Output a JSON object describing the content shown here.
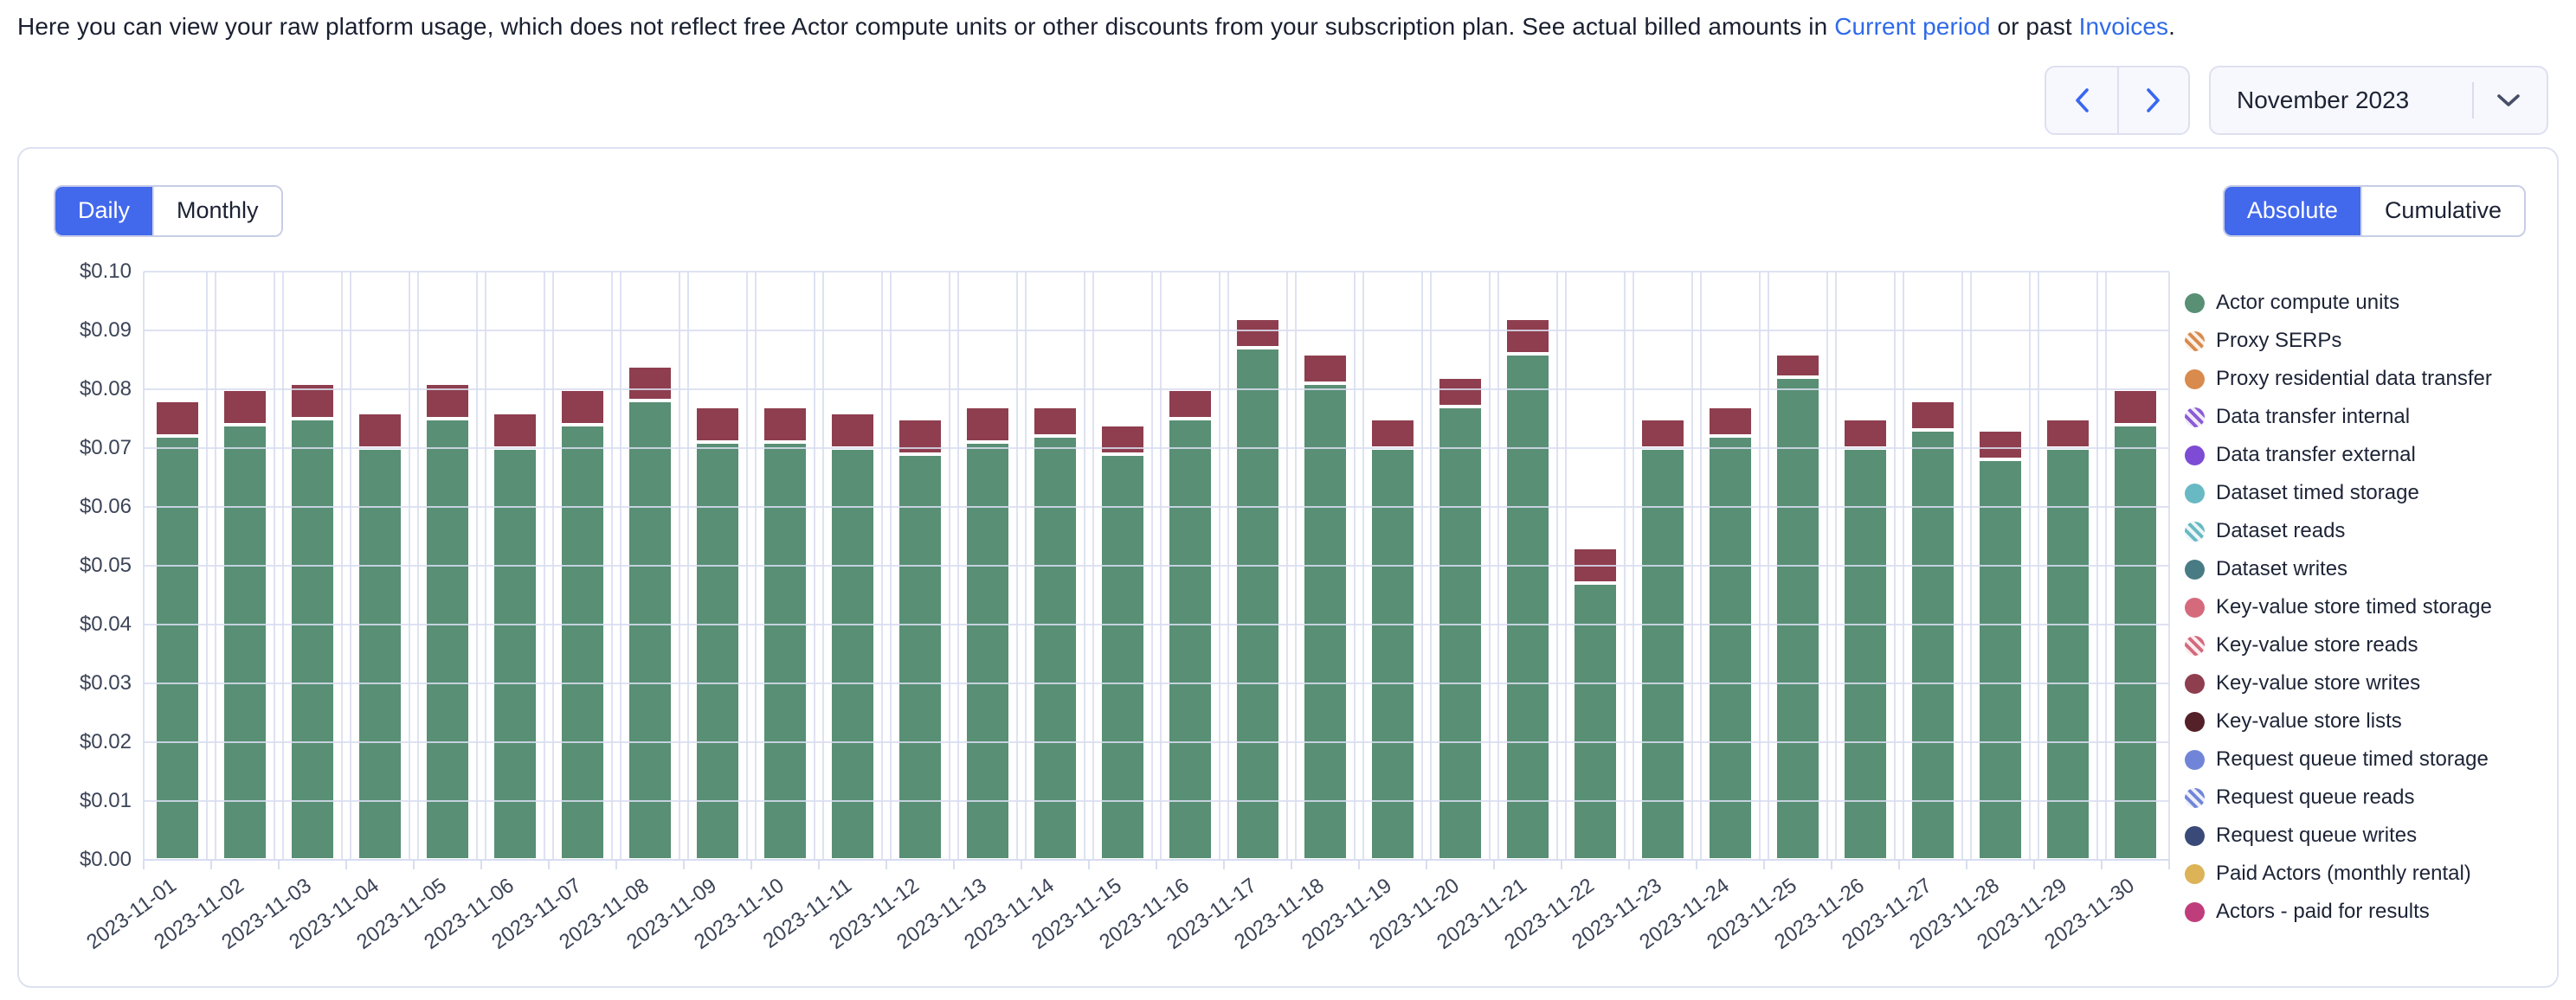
{
  "intro": {
    "text_1": "Here you can view your raw platform usage, which does not reflect free Actor compute units or other discounts from your subscription plan. See actual billed amounts in ",
    "link_current_period": "Current period",
    "text_2": " or past ",
    "link_invoices": "Invoices",
    "text_3": "."
  },
  "controls": {
    "prev_icon": "chevron-left",
    "next_icon": "chevron-right",
    "month_selector": {
      "value": "November 2023",
      "icon": "chevron-down"
    }
  },
  "toggles": {
    "granularity": {
      "options": [
        "Daily",
        "Monthly"
      ],
      "selected": "Daily"
    },
    "mode": {
      "options": [
        "Absolute",
        "Cumulative"
      ],
      "selected": "Absolute"
    }
  },
  "colors": {
    "accent_blue": "#4268ec",
    "link_blue": "#2f6ae8",
    "grid": "#d8ddf0",
    "bar_green": "#588f75",
    "bar_red": "#8e3e4e"
  },
  "chart_data": {
    "type": "bar",
    "stacked": true,
    "grid": true,
    "legend_position": "right",
    "ylim": [
      0,
      0.1
    ],
    "y_ticks": [
      "$0.00",
      "$0.01",
      "$0.02",
      "$0.03",
      "$0.04",
      "$0.05",
      "$0.06",
      "$0.07",
      "$0.08",
      "$0.09",
      "$0.10"
    ],
    "x": [
      "2023-11-01",
      "2023-11-02",
      "2023-11-03",
      "2023-11-04",
      "2023-11-05",
      "2023-11-06",
      "2023-11-07",
      "2023-11-08",
      "2023-11-09",
      "2023-11-10",
      "2023-11-11",
      "2023-11-12",
      "2023-11-13",
      "2023-11-14",
      "2023-11-15",
      "2023-11-16",
      "2023-11-17",
      "2023-11-18",
      "2023-11-19",
      "2023-11-20",
      "2023-11-21",
      "2023-11-22",
      "2023-11-23",
      "2023-11-24",
      "2023-11-25",
      "2023-11-26",
      "2023-11-27",
      "2023-11-28",
      "2023-11-29",
      "2023-11-30"
    ],
    "series": [
      {
        "name": "Actor compute units",
        "color": "#588f75",
        "values": [
          0.072,
          0.074,
          0.075,
          0.07,
          0.075,
          0.07,
          0.074,
          0.078,
          0.071,
          0.071,
          0.07,
          0.069,
          0.071,
          0.072,
          0.069,
          0.075,
          0.087,
          0.081,
          0.07,
          0.077,
          0.086,
          0.047,
          0.07,
          0.072,
          0.082,
          0.07,
          0.073,
          0.068,
          0.07,
          0.074
        ]
      },
      {
        "name": "Key-value store writes",
        "color": "#8e3e4e",
        "values": [
          0.006,
          0.006,
          0.006,
          0.006,
          0.006,
          0.006,
          0.006,
          0.006,
          0.006,
          0.006,
          0.006,
          0.006,
          0.006,
          0.005,
          0.005,
          0.005,
          0.005,
          0.005,
          0.005,
          0.005,
          0.006,
          0.006,
          0.005,
          0.005,
          0.004,
          0.005,
          0.005,
          0.005,
          0.005,
          0.006
        ]
      }
    ],
    "legend": [
      {
        "label": "Actor compute units",
        "color": "#588f75",
        "striped": false
      },
      {
        "label": "Proxy SERPs",
        "color": "#d98a4d",
        "striped": true
      },
      {
        "label": "Proxy residential data transfer",
        "color": "#d98a4d",
        "striped": false
      },
      {
        "label": "Data transfer internal",
        "color": "#8b5cd6",
        "striped": true
      },
      {
        "label": "Data transfer external",
        "color": "#7d4bd4",
        "striped": false
      },
      {
        "label": "Dataset timed storage",
        "color": "#68b9c4",
        "striped": false
      },
      {
        "label": "Dataset reads",
        "color": "#68b9c4",
        "striped": true
      },
      {
        "label": "Dataset writes",
        "color": "#497b84",
        "striped": false
      },
      {
        "label": "Key-value store timed storage",
        "color": "#d56a7d",
        "striped": false
      },
      {
        "label": "Key-value store reads",
        "color": "#d56a7d",
        "striped": true
      },
      {
        "label": "Key-value store writes",
        "color": "#8e3e4e",
        "striped": false
      },
      {
        "label": "Key-value store lists",
        "color": "#542129",
        "striped": false
      },
      {
        "label": "Request queue timed storage",
        "color": "#7185d8",
        "striped": false
      },
      {
        "label": "Request queue reads",
        "color": "#7185d8",
        "striped": true
      },
      {
        "label": "Request queue writes",
        "color": "#3a4a78",
        "striped": false
      },
      {
        "label": "Paid Actors (monthly rental)",
        "color": "#dcb357",
        "striped": false
      },
      {
        "label": "Actors - paid for results",
        "color": "#c03d7c",
        "striped": false
      }
    ]
  }
}
